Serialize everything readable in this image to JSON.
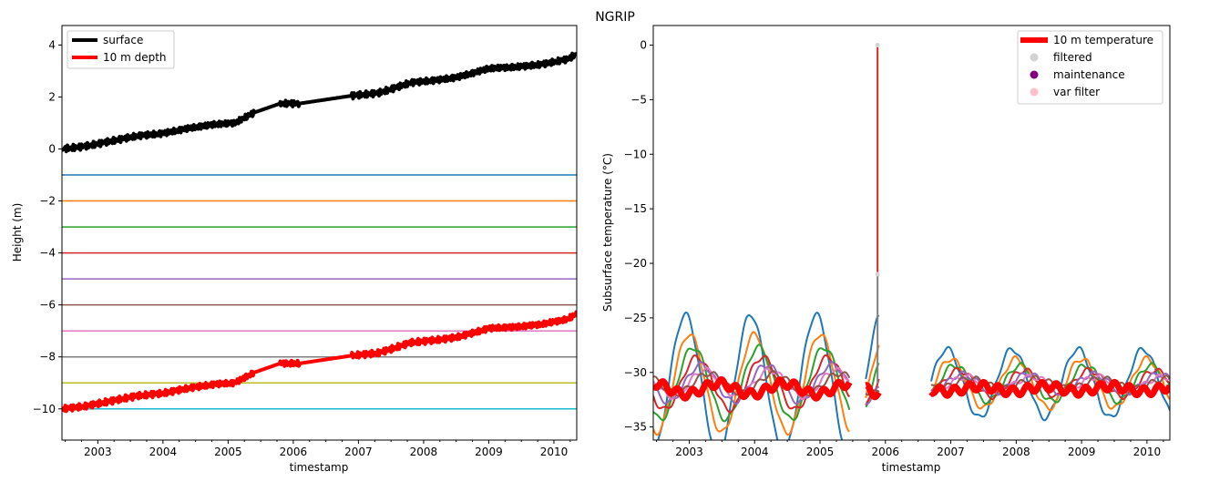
{
  "figure_title": "NGRIP",
  "chart_data": [
    {
      "type": "line",
      "xlabel": "timestamp",
      "ylabel": "Height (m)",
      "xlim": [
        2002.45,
        2010.35
      ],
      "ylim": [
        -11.2,
        4.75
      ],
      "xticks": [
        2003,
        2004,
        2005,
        2006,
        2007,
        2008,
        2009,
        2010
      ],
      "xtick_labels": [
        "2003",
        "2004",
        "2005",
        "2006",
        "2007",
        "2008",
        "2009",
        "2010"
      ],
      "yticks": [
        -10,
        -8,
        -6,
        -4,
        -2,
        0,
        2,
        4
      ],
      "ytick_labels": [
        "−10",
        "−8",
        "−6",
        "−4",
        "−2",
        "0",
        "2",
        "4"
      ],
      "legend_position": "upper-left",
      "legend": [
        {
          "label": "surface",
          "color": "#000000"
        },
        {
          "label": "10 m depth",
          "color": "#ff0000"
        }
      ],
      "series": [
        {
          "name": "surface",
          "color": "#000000",
          "x": [
            2002.45,
            2002.8,
            2003.2,
            2003.6,
            2004.0,
            2004.4,
            2004.8,
            2005.1,
            2005.4,
            2005.8,
            2006.1,
            2006.9,
            2007.3,
            2007.5,
            2007.8,
            2008.2,
            2008.5,
            2008.8,
            2009.0,
            2009.4,
            2009.8,
            2010.0,
            2010.2,
            2010.35
          ],
          "y": [
            0.0,
            0.1,
            0.3,
            0.5,
            0.6,
            0.8,
            0.95,
            1.0,
            1.4,
            1.75,
            1.75,
            2.05,
            2.15,
            2.3,
            2.55,
            2.65,
            2.75,
            2.95,
            3.1,
            3.15,
            3.25,
            3.35,
            3.45,
            3.65
          ]
        },
        {
          "name": "10 m depth",
          "color": "#ff0000",
          "x": [
            2002.45,
            2002.8,
            2003.2,
            2003.6,
            2004.0,
            2004.4,
            2004.8,
            2005.1,
            2005.4,
            2005.8,
            2006.1,
            2006.9,
            2007.3,
            2007.5,
            2007.8,
            2008.2,
            2008.5,
            2008.8,
            2009.0,
            2009.4,
            2009.8,
            2010.0,
            2010.2,
            2010.35
          ],
          "y": [
            -10.0,
            -9.9,
            -9.7,
            -9.5,
            -9.4,
            -9.2,
            -9.05,
            -9.0,
            -8.6,
            -8.25,
            -8.25,
            -7.95,
            -7.85,
            -7.7,
            -7.45,
            -7.35,
            -7.25,
            -7.05,
            -6.9,
            -6.85,
            -6.75,
            -6.65,
            -6.55,
            -6.35
          ]
        }
      ],
      "sensor_levels": [
        {
          "y": -1,
          "color": "#1f77b4"
        },
        {
          "y": -2,
          "color": "#ff7f0e"
        },
        {
          "y": -3,
          "color": "#2ca02c"
        },
        {
          "y": -4,
          "color": "#d62728"
        },
        {
          "y": -5,
          "color": "#9467bd"
        },
        {
          "y": -6,
          "color": "#8c564b"
        },
        {
          "y": -7,
          "color": "#e377c2"
        },
        {
          "y": -8,
          "color": "#7f7f7f"
        },
        {
          "y": -9,
          "color": "#bcbd22"
        },
        {
          "y": -10,
          "color": "#17becf"
        }
      ]
    },
    {
      "type": "line",
      "xlabel": "timestamp",
      "ylabel": "Subsurface temperature (°C)",
      "xlim": [
        2002.45,
        2010.35
      ],
      "ylim": [
        -36.2,
        1.8
      ],
      "xticks": [
        2003,
        2004,
        2005,
        2006,
        2007,
        2008,
        2009,
        2010
      ],
      "xtick_labels": [
        "2003",
        "2004",
        "2005",
        "2006",
        "2007",
        "2008",
        "2009",
        "2010"
      ],
      "yticks": [
        -35,
        -30,
        -25,
        -20,
        -15,
        -10,
        -5,
        0
      ],
      "ytick_labels": [
        "−35",
        "−30",
        "−25",
        "−20",
        "−15",
        "−10",
        "−5",
        "0"
      ],
      "legend_position": "upper-right",
      "legend": [
        {
          "label": "10 m temperature",
          "color": "#ff0000",
          "marker": "line"
        },
        {
          "label": "filtered",
          "color": "#d3d3d3",
          "marker": "dot"
        },
        {
          "label": "maintenance",
          "color": "#800080",
          "marker": "dot"
        },
        {
          "label": "var filter",
          "color": "#ffc0cb",
          "marker": "dot"
        }
      ],
      "segments": [
        [
          2002.45,
          2005.45
        ],
        [
          2005.7,
          2005.9
        ],
        [
          2006.7,
          2010.35
        ]
      ],
      "spike": {
        "x": 2005.88,
        "y_top": 0.0,
        "y_bottom": -31.0
      },
      "filtered_points": [
        {
          "x": 2005.88,
          "y": 0.0
        },
        {
          "x": 2005.88,
          "y": -21.0
        }
      ],
      "series": [
        {
          "name": "",
          "color": "#1f77b4",
          "mean": -31.0,
          "amp": 6.3,
          "phase_year": 2002.69
        },
        {
          "name": "",
          "color": "#ff7f0e",
          "mean": -31.0,
          "amp": 4.5,
          "phase_year": 2002.75
        },
        {
          "name": "",
          "color": "#2ca02c",
          "mean": -31.0,
          "amp": 3.3,
          "phase_year": 2002.81
        },
        {
          "name": "",
          "color": "#d62728",
          "mean": -31.0,
          "amp": 2.4,
          "phase_year": 2002.87
        },
        {
          "name": "",
          "color": "#9467bd",
          "mean": -31.0,
          "amp": 1.7,
          "phase_year": 2002.93
        },
        {
          "name": "",
          "color": "#e377c2",
          "mean": -31.0,
          "amp": 1.2,
          "phase_year": 2002.99
        },
        {
          "name": "",
          "color": "#8c564b",
          "mean": -31.0,
          "amp": 0.9,
          "phase_year": 2003.05
        },
        {
          "name": "10 m temperature",
          "color": "#ff0000",
          "mean": -31.5,
          "amp": 0.5,
          "phase_year": 2003.2
        }
      ]
    }
  ]
}
